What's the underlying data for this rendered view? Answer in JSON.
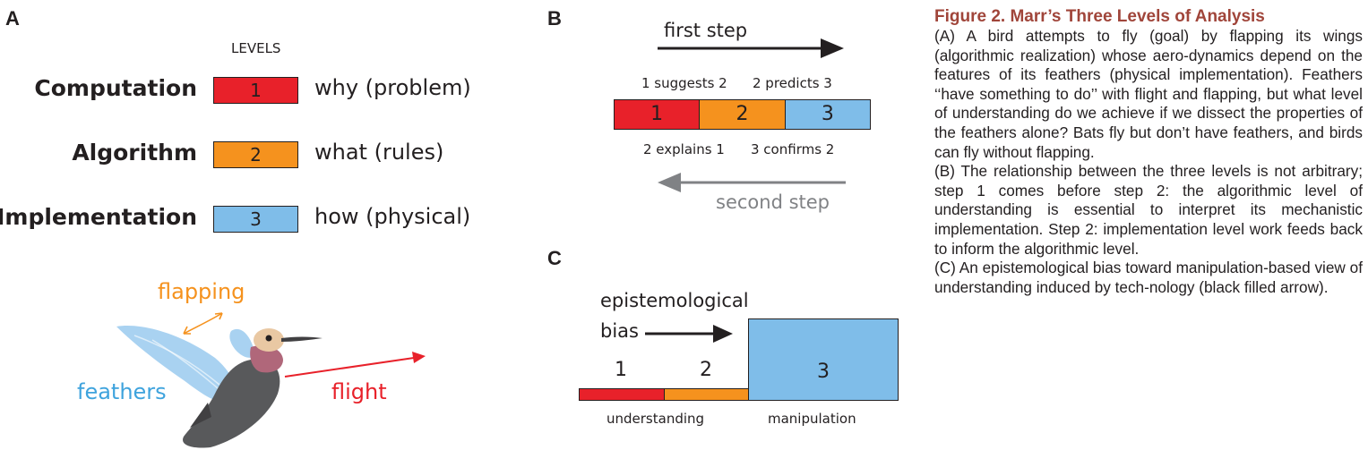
{
  "panels": {
    "a": "A",
    "b": "B",
    "c": "C"
  },
  "panel_a": {
    "levels_header": "LEVELS",
    "levels": [
      {
        "name": "Computation",
        "number": "1",
        "description": "why (problem)",
        "color": "#e8212a"
      },
      {
        "name": "Algorithm",
        "number": "2",
        "description": "what (rules)",
        "color": "#f5921e"
      },
      {
        "name": "Implementation",
        "number": "3",
        "description": "how (physical)",
        "color": "#7fbde9"
      }
    ],
    "bird": {
      "flapping": "flapping",
      "feathers": "feathers",
      "flight": "flight"
    }
  },
  "panel_b": {
    "first_step": "first step",
    "second_step": "second step",
    "suggests": "1 suggests 2",
    "predicts": "2 predicts 3",
    "explains": "2 explains 1",
    "confirms": "3 confirms 2",
    "boxes": [
      "1",
      "2",
      "3"
    ]
  },
  "panel_c": {
    "bias_line1": "epistemological",
    "bias_line2": "bias",
    "numbers": [
      "1",
      "2",
      "3"
    ],
    "understanding": "understanding",
    "manipulation": "manipulation"
  },
  "caption": {
    "title": "Figure 2.  Marr’s Three Levels of Analysis",
    "a": "(A) A bird attempts to fly (goal) by flapping its wings (algorithmic realization) whose aero-dynamics depend on the features of its feathers (physical implementation). Feathers ‘‘have something to do’’ with flight and flapping, but what level of understanding do we achieve if we dissect the properties of the feathers alone? Bats fly but don’t have feathers, and birds can fly without flapping.",
    "b": "(B) The relationship between the three levels is not arbitrary; step 1 comes before step 2: the algorithmic level of understanding is essential to interpret its mechanistic implementation. Step 2: implementation level work feeds back to inform the algorithmic level.",
    "c": "(C) An epistemological bias toward manipulation-based view of understanding induced by tech-nology (black filled arrow)."
  },
  "colors": {
    "red": "#e8212a",
    "orange": "#f5921e",
    "blue": "#7fbde9",
    "gray": "#808285",
    "title": "#a0453a"
  }
}
